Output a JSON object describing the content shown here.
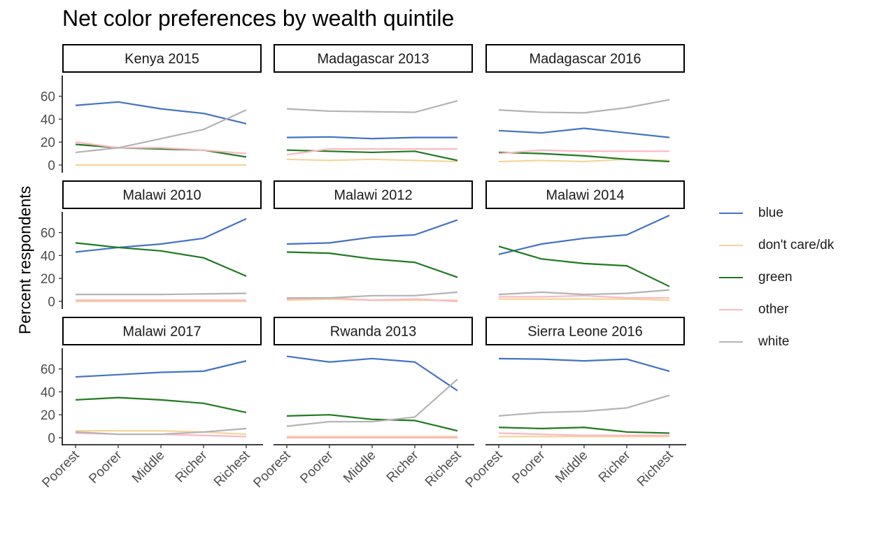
{
  "title": "Net color preferences by wealth quintile",
  "y_label": "Percent respondents",
  "colors": {
    "blue": "#4472c4",
    "don't care/dk": "#f5d49a",
    "green": "#1f7a1f",
    "other": "#ffb6c1",
    "white": "#b3b3b3"
  },
  "legend": [
    "blue",
    "don't care/dk",
    "green",
    "other",
    "white"
  ],
  "chart_data": {
    "type": "line",
    "x": [
      "Poorest",
      "Poorer",
      "Middle",
      "Richer",
      "Richest"
    ],
    "y_ticks": [
      0,
      20,
      40,
      60
    ],
    "ylim": [
      0,
      75
    ],
    "facets": [
      {
        "label": "Kenya 2015",
        "series": [
          {
            "name": "blue",
            "values": [
              52,
              55,
              49,
              45,
              36
            ]
          },
          {
            "name": "don't care/dk",
            "values": [
              0,
              0,
              0,
              0,
              0
            ]
          },
          {
            "name": "green",
            "values": [
              18,
              15,
              14,
              13,
              7
            ]
          },
          {
            "name": "other",
            "values": [
              20,
              15,
              15,
              13,
              10
            ]
          },
          {
            "name": "white",
            "values": [
              11,
              15,
              23,
              31,
              48
            ]
          }
        ]
      },
      {
        "label": "Madagascar 2013",
        "series": [
          {
            "name": "blue",
            "values": [
              24,
              24.5,
              23,
              24,
              24
            ]
          },
          {
            "name": "don't care/dk",
            "values": [
              5,
              4,
              5,
              4,
              3
            ]
          },
          {
            "name": "green",
            "values": [
              13,
              12,
              11,
              12,
              4
            ]
          },
          {
            "name": "other",
            "values": [
              9,
              14,
              14,
              14,
              14
            ]
          },
          {
            "name": "white",
            "values": [
              49,
              47,
              46.5,
              46,
              56
            ]
          }
        ]
      },
      {
        "label": "Madagascar 2016",
        "series": [
          {
            "name": "blue",
            "values": [
              30,
              28,
              32,
              28,
              24
            ]
          },
          {
            "name": "don't care/dk",
            "values": [
              3,
              4,
              3,
              5,
              4
            ]
          },
          {
            "name": "green",
            "values": [
              11,
              10,
              8,
              5,
              3
            ]
          },
          {
            "name": "other",
            "values": [
              10,
              13,
              12,
              12,
              12
            ]
          },
          {
            "name": "white",
            "values": [
              48,
              46,
              45.5,
              50,
              57
            ]
          }
        ]
      },
      {
        "label": "Malawi 2010",
        "series": [
          {
            "name": "blue",
            "values": [
              43,
              47,
              50,
              55,
              72
            ]
          },
          {
            "name": "don't care/dk",
            "values": [
              0,
              0,
              0,
              0,
              0
            ]
          },
          {
            "name": "green",
            "values": [
              51,
              47,
              44,
              38,
              22
            ]
          },
          {
            "name": "other",
            "values": [
              1,
              1,
              1,
              1,
              1
            ]
          },
          {
            "name": "white",
            "values": [
              6,
              6,
              6,
              6.5,
              7
            ]
          }
        ]
      },
      {
        "label": "Malawi 2012",
        "series": [
          {
            "name": "blue",
            "values": [
              50,
              51,
              56,
              58,
              71
            ]
          },
          {
            "name": "don't care/dk",
            "values": [
              1,
              2,
              1,
              1,
              1
            ]
          },
          {
            "name": "green",
            "values": [
              43,
              42,
              37,
              34,
              21
            ]
          },
          {
            "name": "other",
            "values": [
              2,
              3,
              1,
              2,
              0
            ]
          },
          {
            "name": "white",
            "values": [
              3,
              3,
              5,
              5,
              8
            ]
          }
        ]
      },
      {
        "label": "Malawi 2014",
        "series": [
          {
            "name": "blue",
            "values": [
              41,
              50,
              55,
              58,
              75
            ]
          },
          {
            "name": "don't care/dk",
            "values": [
              2,
              2,
              2,
              2,
              1
            ]
          },
          {
            "name": "green",
            "values": [
              48,
              37,
              33,
              31,
              13
            ]
          },
          {
            "name": "other",
            "values": [
              4,
              4,
              5,
              3,
              3
            ]
          },
          {
            "name": "white",
            "values": [
              6,
              8,
              6,
              7,
              10
            ]
          }
        ]
      },
      {
        "label": "Malawi 2017",
        "series": [
          {
            "name": "blue",
            "values": [
              53,
              55,
              57,
              58,
              67
            ]
          },
          {
            "name": "don't care/dk",
            "values": [
              6,
              6,
              6,
              5,
              3
            ]
          },
          {
            "name": "green",
            "values": [
              33,
              35,
              33,
              30,
              22
            ]
          },
          {
            "name": "other",
            "values": [
              4,
              3,
              3,
              2,
              1
            ]
          },
          {
            "name": "white",
            "values": [
              5,
              3,
              3,
              5,
              8
            ]
          }
        ]
      },
      {
        "label": "Rwanda 2013",
        "series": [
          {
            "name": "blue",
            "values": [
              71,
              66,
              69,
              66,
              41
            ]
          },
          {
            "name": "don't care/dk",
            "values": [
              1,
              1,
              1,
              1,
              1
            ]
          },
          {
            "name": "green",
            "values": [
              19,
              20,
              16,
              15,
              6
            ]
          },
          {
            "name": "other",
            "values": [
              0,
              0,
              0,
              0,
              0
            ]
          },
          {
            "name": "white",
            "values": [
              10,
              14,
              14,
              18,
              51
            ]
          }
        ]
      },
      {
        "label": "Sierra Leone 2016",
        "series": [
          {
            "name": "blue",
            "values": [
              69,
              68.5,
              67,
              68.5,
              58
            ]
          },
          {
            "name": "don't care/dk",
            "values": [
              1,
              1,
              1,
              1,
              1
            ]
          },
          {
            "name": "green",
            "values": [
              9,
              8,
              9,
              5,
              4
            ]
          },
          {
            "name": "other",
            "values": [
              4,
              3,
              2,
              2,
              2
            ]
          },
          {
            "name": "white",
            "values": [
              19,
              22,
              23,
              26,
              37
            ]
          }
        ]
      }
    ]
  }
}
